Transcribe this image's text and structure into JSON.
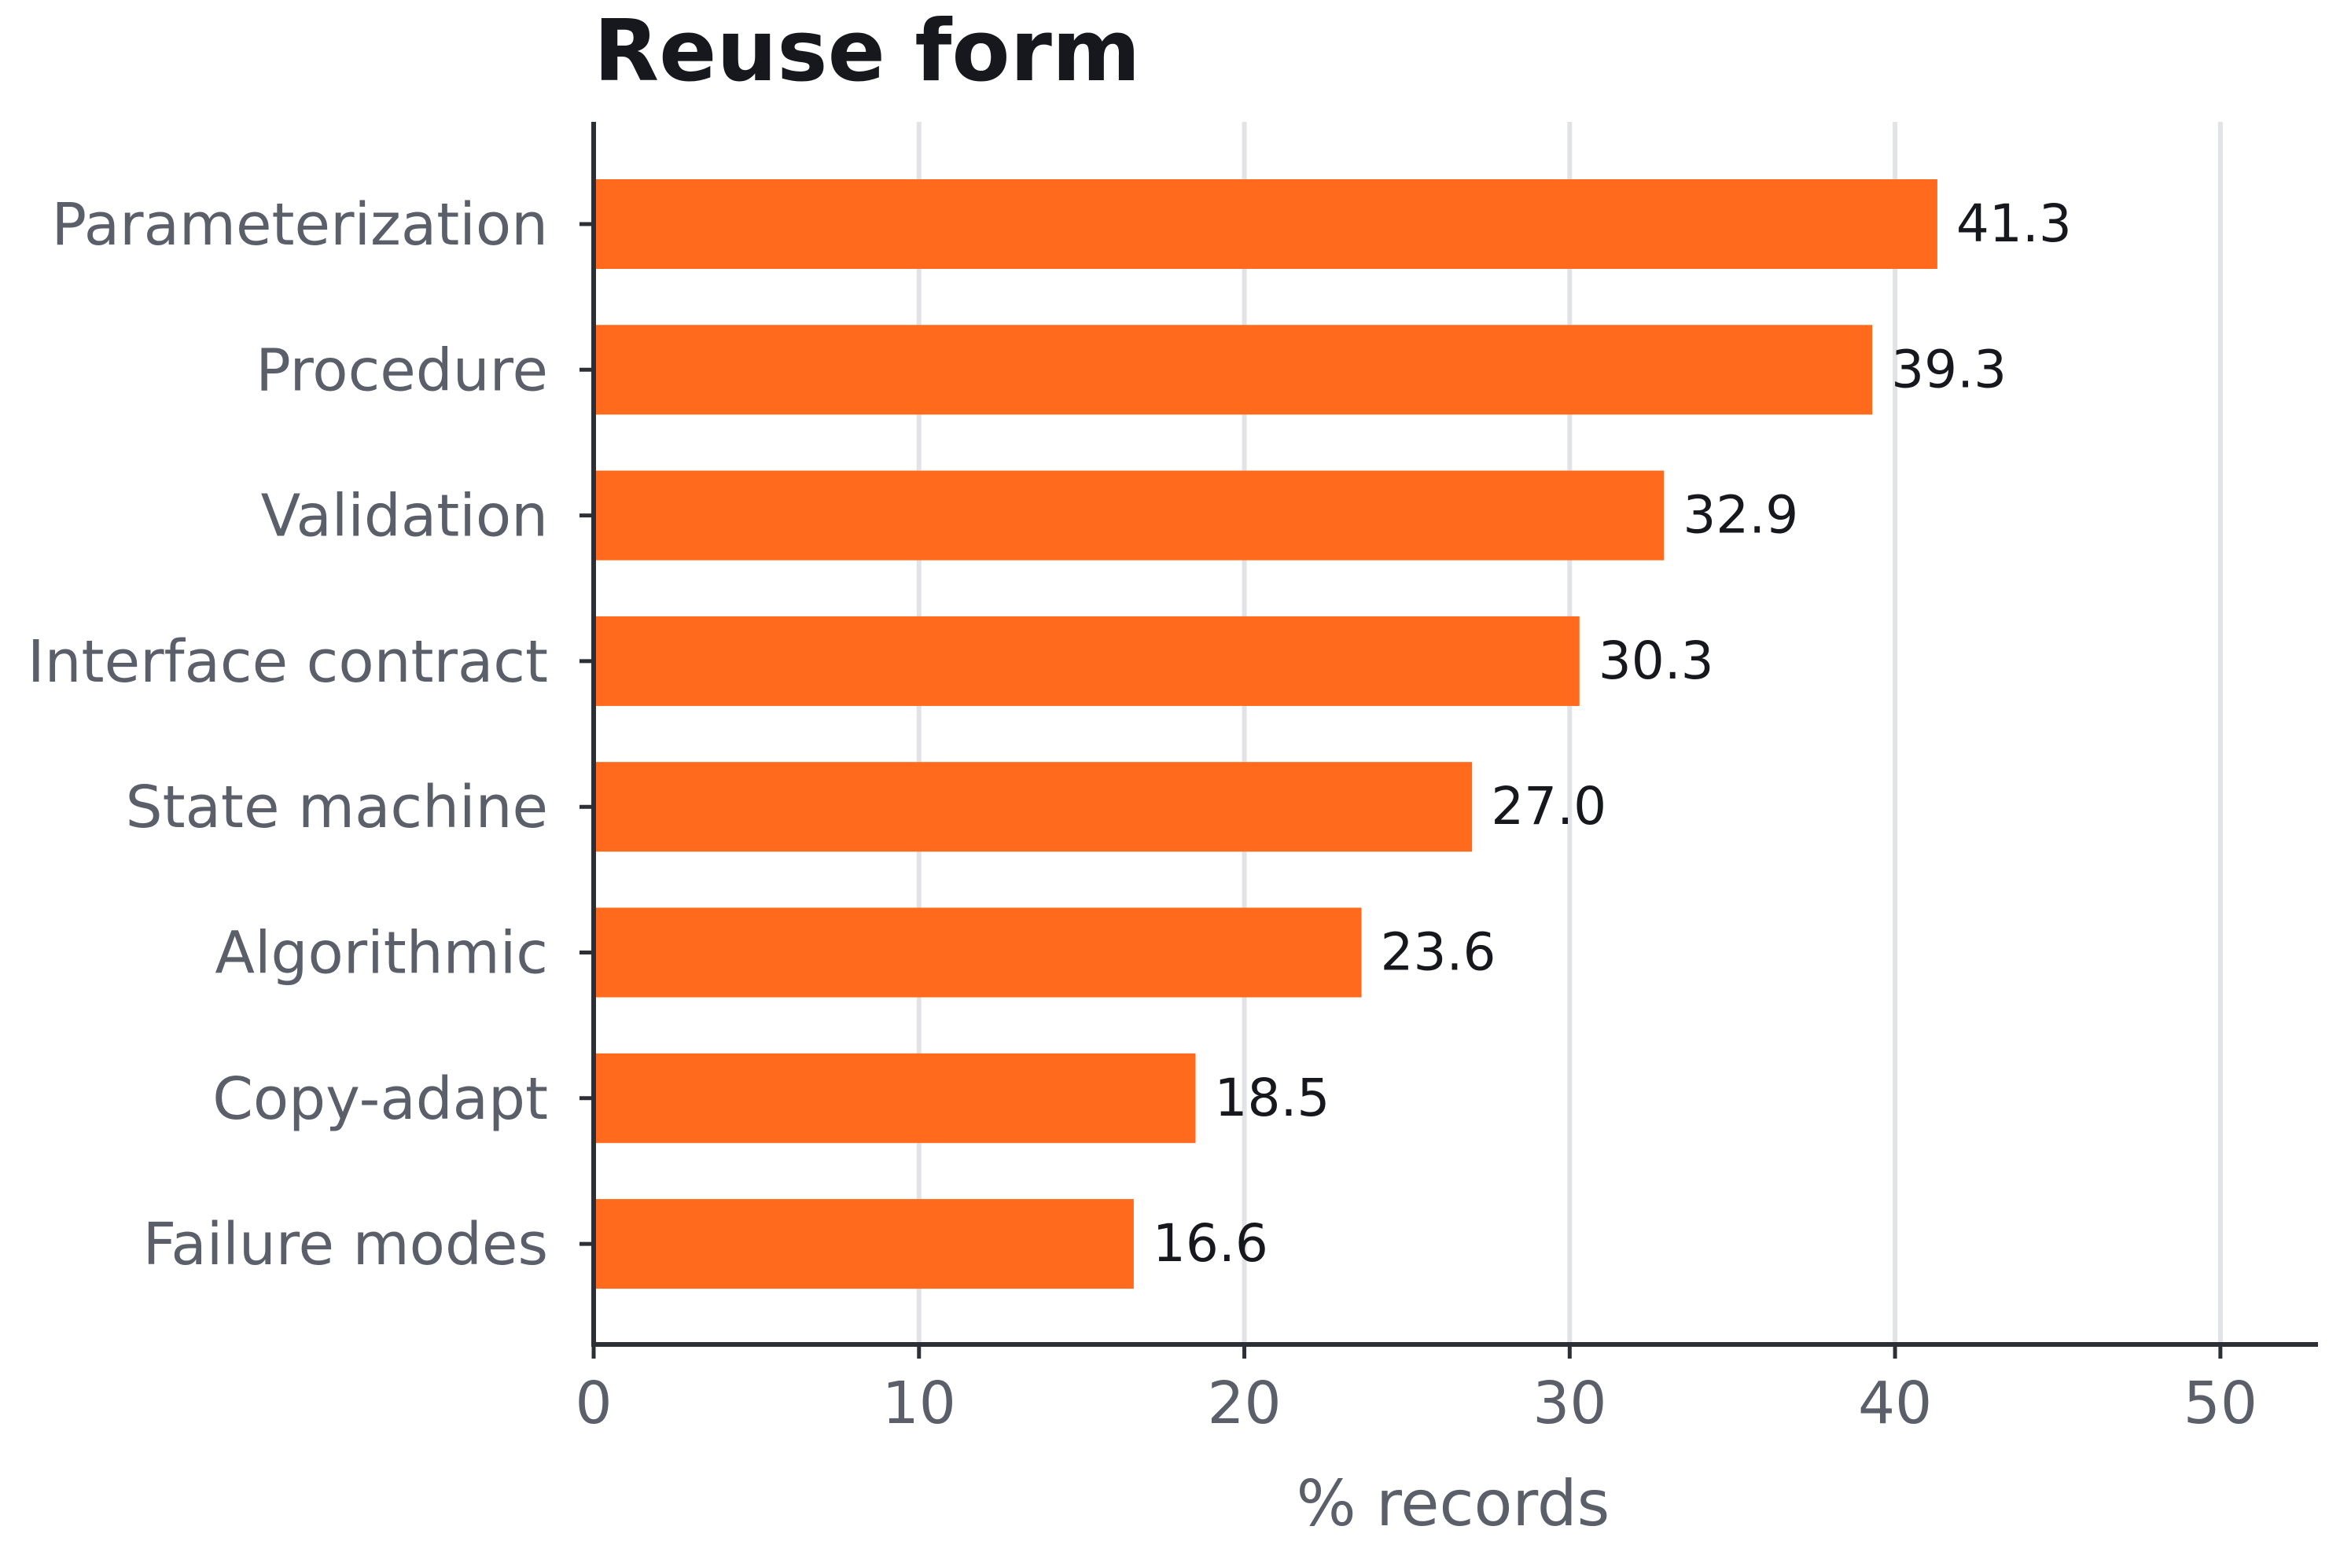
{
  "chart_data": {
    "type": "bar",
    "orientation": "horizontal",
    "title": "Reuse form",
    "xlabel": "% records",
    "ylabel": "",
    "categories": [
      "Parameterization",
      "Procedure",
      "Validation",
      "Interface contract",
      "State machine",
      "Algorithmic",
      "Copy-adapt",
      "Failure modes"
    ],
    "values": [
      41.3,
      39.3,
      32.9,
      30.3,
      27.0,
      23.6,
      18.5,
      16.6
    ],
    "value_labels": [
      "41.3",
      "39.3",
      "32.9",
      "30.3",
      "27.0",
      "23.6",
      "18.5",
      "16.6"
    ],
    "xlim": [
      0,
      53
    ],
    "xticks": [
      0,
      10,
      20,
      30,
      40,
      50
    ],
    "xtick_labels": [
      "0",
      "10",
      "20",
      "30",
      "40",
      "50"
    ],
    "grid": "vertical",
    "legend": "none",
    "colors": {
      "bar": "#ff6a1c"
    }
  }
}
